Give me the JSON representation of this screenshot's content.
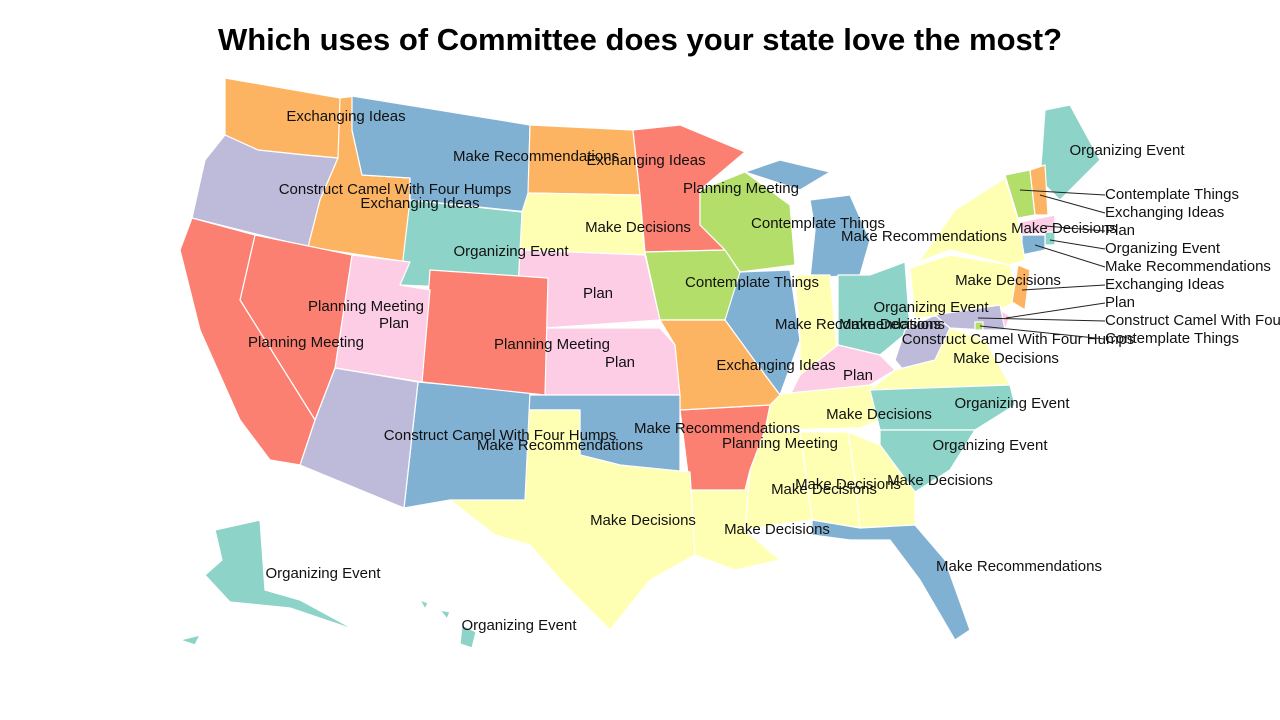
{
  "title": "Which uses of Committee does your state love the most?",
  "regions": [
    {
      "label": "Exchanging Ideas",
      "color": "#fdb462"
    },
    {
      "label": "Construct Camel With Four Humps",
      "color": "#bebada"
    },
    {
      "label": "Exchanging Ideas",
      "color": "#fdb462"
    },
    {
      "label": "Make Recommendations",
      "color": "#80b1d3"
    },
    {
      "label": "Exchanging Ideas",
      "color": "#fdb462"
    },
    {
      "label": "Make Decisions",
      "color": "#ffffb3"
    },
    {
      "label": "Planning Meeting",
      "color": "#fb8072"
    },
    {
      "label": "Organizing Event",
      "color": "#8dd3c7"
    },
    {
      "label": "Plan",
      "color": "#fccde5"
    },
    {
      "label": "Contemplate Things",
      "color": "#b3de69"
    },
    {
      "label": "Contemplate Things",
      "color": "#b3de69"
    },
    {
      "label": "Make Recommendations",
      "color": "#80b1d3"
    },
    {
      "label": "Make Recommendations",
      "color": "#80b1d3"
    },
    {
      "label": "Make Decisions",
      "color": "#ffffb3"
    },
    {
      "label": "Organizing Event",
      "color": "#8dd3c7"
    },
    {
      "label": "Plan",
      "color": "#fccde5"
    },
    {
      "label": "Make Decisions",
      "color": "#ffffb3"
    },
    {
      "label": "Construct Camel With Four Humps",
      "color": "#bebada"
    },
    {
      "label": "Make Decisions",
      "color": "#ffffb3"
    },
    {
      "label": "Organizing Event",
      "color": "#8dd3c7"
    },
    {
      "label": "Organizing Event",
      "color": "#8dd3c7"
    },
    {
      "label": "Make Decisions",
      "color": "#ffffb3"
    },
    {
      "label": "Make Decisions",
      "color": "#ffffb3"
    },
    {
      "label": "Make Decisions",
      "color": "#ffffb3"
    },
    {
      "label": "Make Recommendations",
      "color": "#80b1d3"
    },
    {
      "label": "Make Decisions",
      "color": "#ffffb3"
    },
    {
      "label": "Planning Meeting",
      "color": "#fb8072"
    },
    {
      "label": "Exchanging Ideas",
      "color": "#fdb462"
    },
    {
      "label": "Plan",
      "color": "#fccde5"
    },
    {
      "label": "Make Recommendations",
      "color": "#80b1d3"
    },
    {
      "label": "Make Decisions",
      "color": "#ffffb3"
    },
    {
      "label": "Make Recommendations",
      "color": "#80b1d3"
    },
    {
      "label": "Planning Meeting",
      "color": "#fb8072"
    },
    {
      "label": "Plan",
      "color": "#fccde5"
    },
    {
      "label": "Construct Camel With Four Humps",
      "color": "#bebada"
    },
    {
      "label": "Planning Meeting",
      "color": "#fb8072"
    },
    {
      "label": "Planning Meeting",
      "color": "#fb8072"
    },
    {
      "label": "Organizing Event",
      "color": "#8dd3c7"
    },
    {
      "label": "Contemplate Things",
      "color": "#b3de69"
    },
    {
      "label": "Exchanging Ideas",
      "color": "#fdb462"
    },
    {
      "label": "Plan",
      "color": "#fccde5"
    },
    {
      "label": "Organizing Event",
      "color": "#8dd3c7"
    },
    {
      "label": "Make Recommendations",
      "color": "#80b1d3"
    },
    {
      "label": "Make Decisions",
      "color": "#ffffb3"
    },
    {
      "label": "Exchanging Ideas",
      "color": "#fdb462"
    },
    {
      "label": "Plan",
      "color": "#fccde5"
    },
    {
      "label": "Construct Camel With Four Humps",
      "color": "#bebada"
    },
    {
      "label": "Contemplate Things",
      "color": "#b3de69"
    },
    {
      "label": "Make Decisions",
      "color": "#ffffb3"
    },
    {
      "label": "Organizing Event",
      "color": "#8dd3c7"
    },
    {
      "label": "Organizing Event",
      "color": "#8dd3c7"
    }
  ]
}
